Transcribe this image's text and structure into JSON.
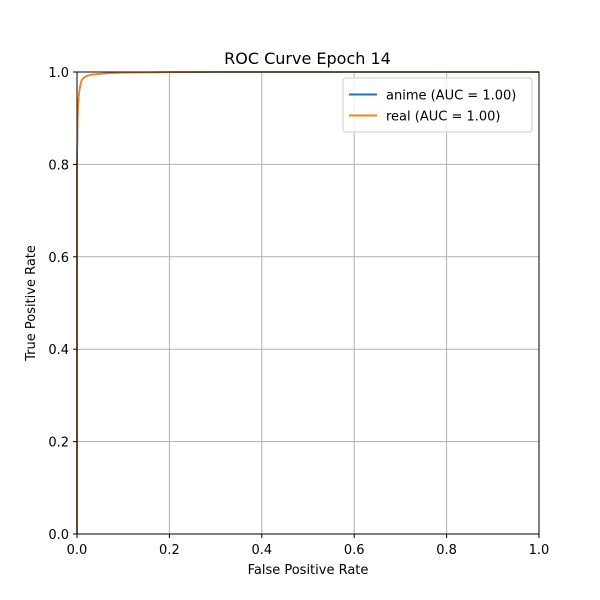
{
  "chart_data": {
    "type": "line",
    "title": "ROC Curve Epoch 14",
    "xlabel": "False Positive Rate",
    "ylabel": "True Positive Rate",
    "xlim": [
      0,
      1
    ],
    "ylim": [
      0,
      1
    ],
    "xticks": [
      "0.0",
      "0.2",
      "0.4",
      "0.6",
      "0.8",
      "1.0"
    ],
    "yticks": [
      "0.0",
      "0.2",
      "0.4",
      "0.6",
      "0.8",
      "1.0"
    ],
    "grid": true,
    "legend_position": "top-right",
    "series": [
      {
        "name": "anime (AUC = 1.00)",
        "color": "#1f77b4",
        "x": [
          0,
          0,
          0.001,
          0.002,
          0.004,
          0.006,
          0.008,
          0.01,
          0.015,
          0.02,
          0.03,
          0.05,
          0.08,
          0.12,
          0.2,
          0.3,
          0.5,
          1.0
        ],
        "y": [
          0,
          0.8,
          0.87,
          0.92,
          0.95,
          0.965,
          0.975,
          0.982,
          0.988,
          0.991,
          0.994,
          0.996,
          0.998,
          0.999,
          0.9995,
          1.0,
          1.0,
          1.0
        ]
      },
      {
        "name": "real (AUC = 1.00)",
        "color": "#ff7f0e",
        "x": [
          0,
          0,
          0.001,
          0.002,
          0.004,
          0.006,
          0.008,
          0.01,
          0.015,
          0.02,
          0.03,
          0.05,
          0.08,
          0.12,
          0.2,
          0.3,
          0.5,
          1.0
        ],
        "y": [
          0,
          0.8,
          0.87,
          0.92,
          0.95,
          0.965,
          0.975,
          0.982,
          0.988,
          0.991,
          0.994,
          0.996,
          0.998,
          0.999,
          0.9995,
          1.0,
          1.0,
          1.0
        ]
      }
    ]
  }
}
